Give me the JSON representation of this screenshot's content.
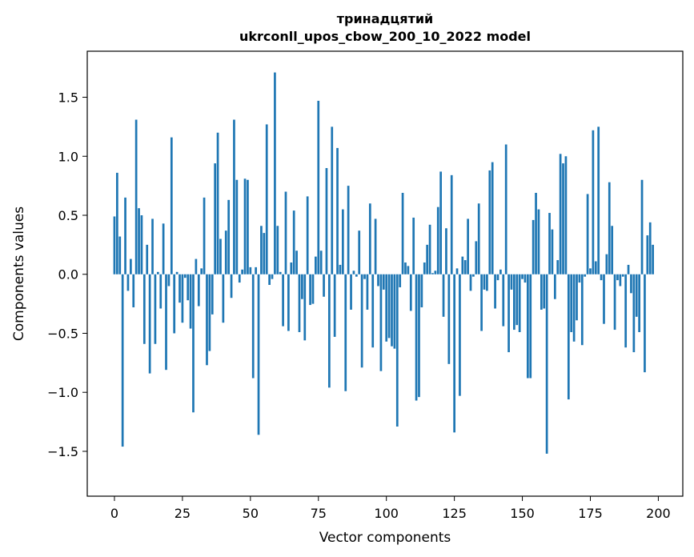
{
  "chart_data": {
    "type": "bar",
    "title_line1": "тринадцятий",
    "title_line2": "ukrconll_upos_cbow_200_10_2022 model",
    "xlabel": "Vector components",
    "ylabel": "Components values",
    "xlim": [
      -10,
      209
    ],
    "ylim": [
      -1.88,
      1.89
    ],
    "xticks": [
      0,
      25,
      50,
      75,
      100,
      125,
      150,
      175,
      200
    ],
    "xtick_labels": [
      "0",
      "25",
      "50",
      "75",
      "100",
      "125",
      "150",
      "175",
      "200"
    ],
    "yticks": [
      -1.5,
      -1.0,
      -0.5,
      0.0,
      0.5,
      1.0,
      1.5
    ],
    "ytick_labels": [
      "−1.5",
      "−1.0",
      "−0.5",
      "0.0",
      "0.5",
      "1.0",
      "1.5"
    ],
    "bar_color": "#1f77b4",
    "values": [
      0.49,
      0.86,
      0.32,
      -1.46,
      0.65,
      -0.14,
      0.13,
      -0.28,
      1.31,
      0.56,
      0.5,
      -0.59,
      0.25,
      -0.84,
      0.47,
      -0.59,
      0.02,
      -0.29,
      0.43,
      -0.81,
      -0.1,
      1.16,
      -0.5,
      0.02,
      -0.24,
      -0.41,
      -0.03,
      -0.22,
      -0.46,
      -1.17,
      0.13,
      -0.27,
      0.05,
      0.65,
      -0.77,
      -0.65,
      -0.34,
      0.94,
      1.2,
      0.3,
      -0.41,
      0.37,
      0.63,
      -0.2,
      1.31,
      0.8,
      -0.07,
      0.04,
      0.81,
      0.8,
      0.06,
      -0.88,
      0.06,
      -1.36,
      0.41,
      0.35,
      1.27,
      -0.09,
      -0.04,
      1.71,
      0.41,
      0.02,
      -0.44,
      0.7,
      -0.48,
      0.1,
      0.54,
      0.2,
      -0.49,
      -0.21,
      -0.56,
      0.66,
      -0.26,
      -0.25,
      0.15,
      1.47,
      0.2,
      -0.19,
      0.9,
      -0.96,
      1.25,
      -0.53,
      1.07,
      0.08,
      0.55,
      -0.99,
      0.75,
      -0.3,
      0.03,
      -0.02,
      0.37,
      -0.79,
      -0.04,
      -0.3,
      0.6,
      -0.62,
      0.47,
      -0.1,
      -0.82,
      -0.13,
      -0.57,
      -0.54,
      -0.61,
      -0.63,
      -1.29,
      -0.11,
      0.69,
      0.1,
      0.07,
      -0.31,
      0.48,
      -1.07,
      -1.04,
      -0.28,
      0.1,
      0.25,
      0.42,
      0.01,
      0.03,
      0.57,
      0.87,
      -0.36,
      0.39,
      -0.76,
      0.84,
      -1.34,
      0.05,
      -1.03,
      0.15,
      0.12,
      0.47,
      -0.14,
      -0.02,
      0.28,
      0.6,
      -0.48,
      -0.13,
      -0.14,
      0.88,
      0.95,
      -0.29,
      -0.05,
      0.04,
      -0.44,
      1.1,
      -0.66,
      -0.13,
      -0.47,
      -0.43,
      -0.49,
      -0.04,
      -0.07,
      -0.88,
      -0.88,
      0.46,
      0.69,
      0.55,
      -0.3,
      -0.29,
      -1.52,
      0.52,
      0.38,
      -0.21,
      0.12,
      1.02,
      0.94,
      1.0,
      -1.06,
      -0.49,
      -0.57,
      -0.39,
      -0.07,
      -0.6,
      -0.02,
      0.68,
      0.05,
      1.22,
      0.11,
      1.25,
      -0.05,
      -0.42,
      0.17,
      0.78,
      0.41,
      -0.47,
      -0.05,
      -0.1,
      -0.02,
      -0.62,
      0.08,
      -0.16,
      -0.66,
      -0.36,
      -0.49,
      0.8,
      -0.83,
      0.33,
      0.44,
      0.25
    ]
  }
}
